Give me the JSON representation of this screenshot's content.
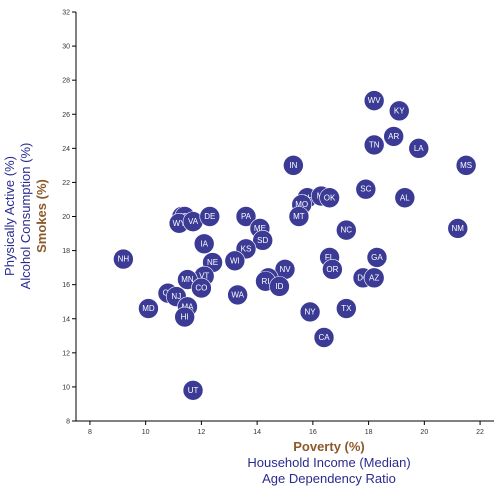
{
  "chart_data": {
    "type": "scatter",
    "x_labels": [
      {
        "text": "Poverty (%)",
        "active": true
      },
      {
        "text": "Household Income (Median)",
        "active": false
      },
      {
        "text": "Age Dependency Ratio",
        "active": false
      }
    ],
    "y_labels": [
      {
        "text": "Physically Active (%)",
        "active": false
      },
      {
        "text": "Alcohol Consumption (%)",
        "active": false
      },
      {
        "text": "Smokes (%)",
        "active": true
      }
    ],
    "xlim": [
      7.5,
      22.5
    ],
    "ylim": [
      8,
      32
    ],
    "x_ticks": [
      8,
      10,
      12,
      14,
      16,
      18,
      20,
      22
    ],
    "y_ticks": [
      8,
      10,
      12,
      14,
      16,
      18,
      20,
      22,
      24,
      26,
      28,
      30,
      32
    ],
    "colors": {
      "point": "#3b3b96",
      "point_text": "#ffffff",
      "active_label": "#8b5a2b",
      "inactive_label": "#2b2b8f"
    },
    "points": [
      {
        "label": "WV",
        "x": 18.2,
        "y": 26.8
      },
      {
        "label": "KY",
        "x": 19.1,
        "y": 26.2
      },
      {
        "label": "AR",
        "x": 18.9,
        "y": 24.7
      },
      {
        "label": "TN",
        "x": 18.2,
        "y": 24.2
      },
      {
        "label": "LA",
        "x": 19.8,
        "y": 24.0
      },
      {
        "label": "MS",
        "x": 21.5,
        "y": 23.0
      },
      {
        "label": "IN",
        "x": 15.3,
        "y": 23.0
      },
      {
        "label": "SC",
        "x": 17.9,
        "y": 21.6
      },
      {
        "label": "AL",
        "x": 19.3,
        "y": 21.1
      },
      {
        "label": "OH",
        "x": 15.8,
        "y": 21.1
      },
      {
        "label": "MI",
        "x": 16.3,
        "y": 21.2
      },
      {
        "label": "OK",
        "x": 16.6,
        "y": 21.1
      },
      {
        "label": "MO",
        "x": 15.6,
        "y": 20.7
      },
      {
        "label": "MT",
        "x": 15.5,
        "y": 20.0
      },
      {
        "label": "NC",
        "x": 17.2,
        "y": 19.2
      },
      {
        "label": "NM",
        "x": 21.2,
        "y": 19.3
      },
      {
        "label": "AK",
        "x": 11.3,
        "y": 20.0
      },
      {
        "label": "ID",
        "x": 11.4,
        "y": 20.0
      },
      {
        "label": "WY",
        "x": 11.2,
        "y": 19.6
      },
      {
        "label": "VA",
        "x": 11.7,
        "y": 19.7
      },
      {
        "label": "DE",
        "x": 12.3,
        "y": 20.0
      },
      {
        "label": "PA",
        "x": 13.6,
        "y": 20.0
      },
      {
        "label": "ME",
        "x": 14.1,
        "y": 19.3
      },
      {
        "label": "SD",
        "x": 14.2,
        "y": 18.6
      },
      {
        "label": "IA",
        "x": 12.1,
        "y": 18.4
      },
      {
        "label": "KS",
        "x": 13.6,
        "y": 18.1
      },
      {
        "label": "WI",
        "x": 13.2,
        "y": 17.4
      },
      {
        "label": "NH",
        "x": 9.2,
        "y": 17.5
      },
      {
        "label": "NE",
        "x": 12.4,
        "y": 17.3
      },
      {
        "label": "VT",
        "x": 12.1,
        "y": 16.5
      },
      {
        "label": "FL",
        "x": 16.6,
        "y": 17.6
      },
      {
        "label": "GA",
        "x": 18.3,
        "y": 17.6
      },
      {
        "label": "OR",
        "x": 16.7,
        "y": 16.9
      },
      {
        "label": "NV",
        "x": 15.0,
        "y": 16.9
      },
      {
        "label": "DC",
        "x": 17.8,
        "y": 16.4
      },
      {
        "label": "AZ",
        "x": 18.2,
        "y": 16.4
      },
      {
        "label": "IL",
        "x": 14.4,
        "y": 16.4
      },
      {
        "label": "RI",
        "x": 14.3,
        "y": 16.2
      },
      {
        "label": "ID",
        "x": 14.8,
        "y": 15.9
      },
      {
        "label": "MN",
        "x": 11.5,
        "y": 16.3
      },
      {
        "label": "CO",
        "x": 12.0,
        "y": 15.8
      },
      {
        "label": "CT",
        "x": 10.8,
        "y": 15.5
      },
      {
        "label": "NJ",
        "x": 11.1,
        "y": 15.3
      },
      {
        "label": "WA",
        "x": 13.3,
        "y": 15.4
      },
      {
        "label": "MD",
        "x": 10.1,
        "y": 14.6
      },
      {
        "label": "MA",
        "x": 11.5,
        "y": 14.7
      },
      {
        "label": "HI",
        "x": 11.4,
        "y": 14.1
      },
      {
        "label": "NY",
        "x": 15.9,
        "y": 14.4
      },
      {
        "label": "TX",
        "x": 17.2,
        "y": 14.6
      },
      {
        "label": "CA",
        "x": 16.4,
        "y": 12.9
      },
      {
        "label": "UT",
        "x": 11.7,
        "y": 9.8
      }
    ]
  }
}
